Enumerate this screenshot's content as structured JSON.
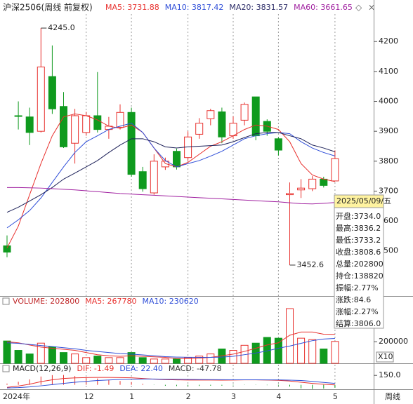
{
  "header": {
    "title": "沪深2506(周线 前复权)",
    "items": [
      {
        "text": "MA5: 3731.88",
        "color": "#e8312e"
      },
      {
        "text": "MA10: 3817.42",
        "color": "#2f4ed8"
      },
      {
        "text": "MA20: 3831.57",
        "color": "#2a2a66"
      },
      {
        "text": "MA60: 3661.65",
        "color": "#a020a0"
      }
    ]
  },
  "chart_data": [
    {
      "type": "candlestick",
      "categories": [
        "2024年",
        null,
        null,
        null,
        null,
        null,
        null,
        "12",
        null,
        null,
        null,
        "1",
        null,
        null,
        null,
        null,
        "2",
        null,
        null,
        null,
        "3",
        null,
        null,
        null,
        "4",
        null,
        null,
        null,
        null,
        "5"
      ],
      "open": [
        3517,
        3952,
        3948,
        3900,
        4083,
        3983,
        3860,
        3896,
        3952,
        3906,
        3913,
        3963,
        3765,
        3694,
        3781,
        3833,
        3812,
        3890,
        3942,
        3965,
        3885,
        3937,
        4015,
        3933,
        3875,
        3688,
        3704,
        3708,
        3740,
        3734.0
      ],
      "close": [
        3496,
        3950,
        3896,
        4115,
        3975,
        3848,
        3952,
        3952,
        3906,
        3917,
        3963,
        3756,
        3708,
        3800,
        3800,
        3781,
        3881,
        3927,
        3969,
        3881,
        3927,
        3990,
        3885,
        3900,
        3837,
        3692,
        3710,
        3740,
        3719,
        3808.6
      ],
      "high": [
        3552,
        4000,
        3979,
        4245.0,
        4187,
        4031,
        3975,
        3965,
        4098,
        3948,
        3990,
        3979,
        3781,
        3823,
        3812,
        3842,
        3900,
        3944,
        3975,
        3979,
        3950,
        3996,
        4015,
        3940,
        3880,
        3729,
        3740,
        3750,
        3748,
        3836.2
      ],
      "low": [
        3479,
        3906,
        3854,
        3896,
        3958,
        3844,
        3792,
        3885,
        3896,
        3875,
        3906,
        3748,
        3698,
        3688,
        3771,
        3772,
        3800,
        3875,
        3920,
        3860,
        3875,
        3920,
        3870,
        3885,
        3819,
        3452.6,
        3677,
        3700,
        3712,
        3733.2
      ],
      "up_color": "#e8312e",
      "down_color": "#0f9a1e",
      "series": [
        {
          "name": "MA5",
          "color": "#e8312e",
          "values": [
            3510,
            3583,
            3688,
            3792,
            3885,
            3948,
            3958,
            3952,
            3938,
            3917,
            3910,
            3921,
            3896,
            3844,
            3792,
            3781,
            3796,
            3823,
            3850,
            3865,
            3885,
            3906,
            3921,
            3917,
            3906,
            3865,
            3792,
            3754,
            3740,
            3731.88
          ]
        },
        {
          "name": "MA10",
          "color": "#2f4ed8",
          "values": [
            3577,
            3604,
            3635,
            3677,
            3729,
            3781,
            3829,
            3865,
            3885,
            3906,
            3917,
            3927,
            3896,
            3844,
            3802,
            3781,
            3792,
            3802,
            3817,
            3833,
            3854,
            3875,
            3885,
            3892,
            3896,
            3892,
            3865,
            3844,
            3829,
            3817.42
          ]
        },
        {
          "name": "MA20",
          "color": "#1c2058",
          "values": [
            3629,
            3646,
            3667,
            3688,
            3712,
            3740,
            3760,
            3781,
            3802,
            3829,
            3854,
            3875,
            3875,
            3865,
            3848,
            3844,
            3848,
            3850,
            3852,
            3854,
            3865,
            3879,
            3892,
            3896,
            3896,
            3885,
            3875,
            3854,
            3844,
            3831.57
          ]
        },
        {
          "name": "MA60",
          "color": "#a020a0",
          "values": [
            3712,
            3712,
            3711,
            3710,
            3708,
            3706,
            3704,
            3701,
            3698,
            3695,
            3692,
            3690,
            3688,
            3686,
            3684,
            3682,
            3680,
            3678,
            3676,
            3674,
            3672,
            3670,
            3668,
            3666,
            3664,
            3661,
            3658,
            3657,
            3659,
            3661.65
          ]
        }
      ],
      "ylim": [
        3354,
        4292
      ],
      "yticks": [
        3500,
        3600,
        3700,
        3800,
        3900,
        4000,
        4100,
        4200
      ],
      "annotations": [
        "4245.0",
        "3452.6"
      ]
    },
    {
      "type": "bar",
      "title": "VOLUME: 202800",
      "items": [
        {
          "text": "MA5: 267780",
          "color": "#e8312e"
        },
        {
          "text": "MA10: 230620",
          "color": "#2f4ed8"
        }
      ],
      "values": [
        207000,
        120000,
        87000,
        187000,
        153000,
        100000,
        87000,
        53000,
        67000,
        53000,
        53000,
        100000,
        53000,
        40000,
        40000,
        40000,
        53000,
        67000,
        87000,
        133000,
        120000,
        167000,
        187000,
        240000,
        233000,
        507000,
        233000,
        220000,
        133000,
        202800
      ],
      "series": [
        {
          "name": "MA5",
          "color": "#e8312e",
          "values": [
            200000,
            190000,
            170000,
            150000,
            140000,
            130000,
            120000,
            100000,
            80000,
            70000,
            65000,
            70000,
            65000,
            60000,
            55000,
            45000,
            45000,
            48000,
            55000,
            70000,
            85000,
            110000,
            140000,
            170000,
            190000,
            260000,
            290000,
            290000,
            270000,
            267780
          ]
        },
        {
          "name": "MA10",
          "color": "#2f4ed8",
          "values": [
            190000,
            185000,
            175000,
            165000,
            155000,
            145000,
            135000,
            120000,
            110000,
            100000,
            90000,
            85000,
            78000,
            70000,
            62000,
            58000,
            56000,
            55000,
            55000,
            58000,
            65000,
            80000,
            95000,
            115000,
            140000,
            160000,
            185000,
            210000,
            225000,
            230620
          ]
        }
      ],
      "ylim": [
        0,
        520000
      ],
      "yticks": [
        200000
      ],
      "scale_label": "X10"
    },
    {
      "type": "line",
      "title": "MACD(12,26,9)",
      "items": [
        {
          "text": "DIF: -1.49",
          "color": "#e8312e"
        },
        {
          "text": "DEA: 22.40",
          "color": "#2f4ed8"
        },
        {
          "text": "MACD: -47.78",
          "color": "#333333"
        }
      ],
      "series": [
        {
          "name": "DIF",
          "color": "#e8312e",
          "values": [
            -40,
            -20,
            10,
            50,
            80,
            100,
            110,
            115,
            118,
            117,
            115,
            112,
            100,
            90,
            82,
            78,
            76,
            75,
            76,
            74,
            76,
            78,
            78,
            76,
            72,
            60,
            40,
            22,
            8,
            -1.49
          ]
        },
        {
          "name": "DEA",
          "color": "#2f4ed8",
          "values": [
            -50,
            -44,
            -33,
            -16,
            3,
            22,
            40,
            55,
            68,
            77,
            85,
            90,
            92,
            92,
            90,
            88,
            86,
            84,
            83,
            81,
            80,
            80,
            80,
            79,
            78,
            74,
            68,
            55,
            38,
            22.4
          ]
        }
      ],
      "hist": [
        20,
        48,
        86,
        132,
        154,
        156,
        140,
        120,
        100,
        80,
        60,
        44,
        16,
        -4,
        -16,
        -20,
        -20,
        -18,
        -14,
        -14,
        -8,
        -4,
        -4,
        -6,
        -12,
        -28,
        -56,
        -66,
        -60,
        -47.78
      ],
      "ylim": [
        -60,
        320
      ],
      "yticks": [
        {
          "value": 150,
          "label": "150.0"
        }
      ]
    }
  ],
  "tooltip": {
    "date": "2025/05/09/五",
    "rows": [
      "开盘:3734.0",
      "最高:3836.2",
      "最低:3733.2",
      "收盘:3808.6",
      "总量:202800",
      "持仓:138820",
      "振幅:2.77%",
      "涨跌:84.6",
      "涨幅:2.27%",
      "结算:3806.0"
    ]
  },
  "period": "周线"
}
